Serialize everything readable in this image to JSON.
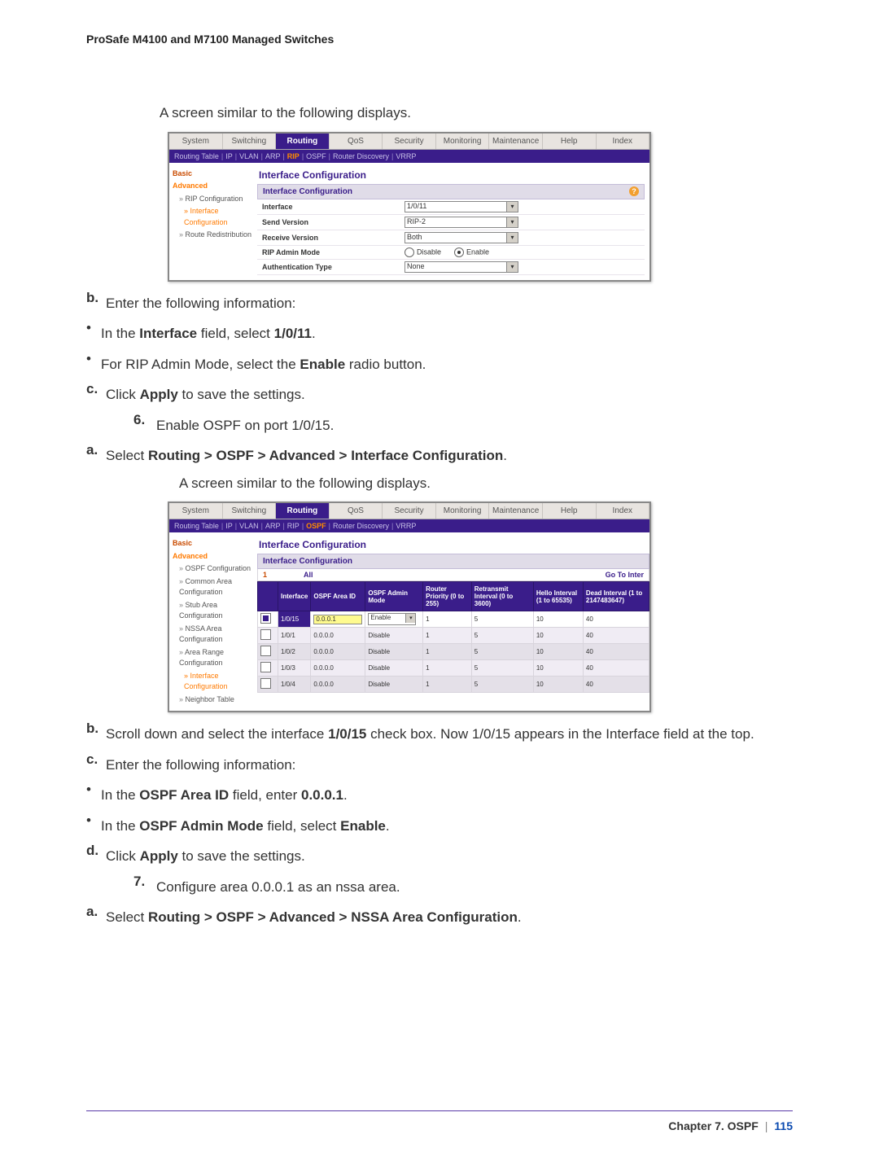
{
  "doc": {
    "header": "ProSafe M4100 and M7100 Managed Switches",
    "footer_chapter": "Chapter 7.  OSPF",
    "footer_page": "115"
  },
  "text": {
    "screen_similar": "A screen similar to the following displays.",
    "b_enter_info": "Enter the following information:",
    "bul_interface_pre": "In the ",
    "bul_interface_bold": "Interface",
    "bul_interface_mid": " field, select ",
    "bul_interface_val": "1/0/11",
    "bul_interface_post": ".",
    "bul_rip_pre": "For RIP Admin Mode, select the ",
    "bul_rip_bold": "Enable",
    "bul_rip_post": " radio button.",
    "c_click_pre": "Click ",
    "c_click_bold": "Apply",
    "c_click_post": " to save the settings.",
    "step6": "Enable OSPF on port 1/0/15.",
    "a6_pre": "Select ",
    "a6_bold": "Routing > OSPF > Advanced > Interface Configuration",
    "a6_post": ".",
    "b6_pre": "Scroll down and select the interface ",
    "b6_bold": "1/0/15",
    "b6_post": " check box. Now 1/0/15 appears in the Interface field at the top.",
    "c6_enter": "Enter the following information:",
    "bul_ospfarea_pre": "In the ",
    "bul_ospfarea_bold": "OSPF Area ID",
    "bul_ospfarea_mid": " field, enter ",
    "bul_ospfarea_val": "0.0.0.1",
    "bul_ospfarea_post": ".",
    "bul_adminmode_pre": "In the ",
    "bul_adminmode_bold": "OSPF Admin Mode",
    "bul_adminmode_mid": " field, select ",
    "bul_adminmode_val": "Enable",
    "bul_adminmode_post": ".",
    "d6_pre": "Click ",
    "d6_bold": "Apply",
    "d6_post": " to save the settings.",
    "step7": "Configure area 0.0.0.1 as an nssa area.",
    "a7_pre": "Select ",
    "a7_bold": "Routing > OSPF > Advanced > NSSA Area Configuration",
    "a7_post": "."
  },
  "labels": {
    "b": "b.",
    "c": "c.",
    "d": "d.",
    "a": "a.",
    "n6": "6.",
    "n7": "7.",
    "bullet": "•"
  },
  "shot1": {
    "tabs": [
      "System",
      "Switching",
      "Routing",
      "QoS",
      "Security",
      "Monitoring",
      "Maintenance",
      "Help",
      "Index"
    ],
    "active_tab": "Routing",
    "subtabs": [
      "Routing Table",
      "IP",
      "VLAN",
      "ARP",
      "RIP",
      "OSPF",
      "Router Discovery",
      "VRRP"
    ],
    "active_subtab": "RIP",
    "sidebar": {
      "basic": "Basic",
      "advanced": "Advanced",
      "items": [
        "RIP Configuration",
        "Interface Configuration",
        "Route Redistribution"
      ],
      "active": "Interface Configuration"
    },
    "title": "Interface Configuration",
    "subtitle": "Interface Configuration",
    "rows": {
      "interface": "Interface",
      "interface_val": "1/0/11",
      "send_version": "Send Version",
      "send_version_val": "RIP-2",
      "recv_version": "Receive Version",
      "recv_version_val": "Both",
      "admin_mode": "RIP Admin Mode",
      "admin_disable": "Disable",
      "admin_enable": "Enable",
      "auth_type": "Authentication Type",
      "auth_type_val": "None"
    }
  },
  "shot2": {
    "tabs": [
      "System",
      "Switching",
      "Routing",
      "QoS",
      "Security",
      "Monitoring",
      "Maintenance",
      "Help",
      "Index"
    ],
    "active_tab": "Routing",
    "subtabs": [
      "Routing Table",
      "IP",
      "VLAN",
      "ARP",
      "RIP",
      "OSPF",
      "Router Discovery",
      "VRRP"
    ],
    "active_subtab": "OSPF",
    "sidebar": {
      "basic": "Basic",
      "advanced": "Advanced",
      "items": [
        "OSPF Configuration",
        "Common Area Configuration",
        "Stub Area Configuration",
        "NSSA Area Configuration",
        "Area Range Configuration",
        "Interface Configuration",
        "Neighbor Table"
      ],
      "active": "Interface Configuration"
    },
    "title": "Interface Configuration",
    "subtitle": "Interface Configuration",
    "filter_one": "1",
    "filter_all": "All",
    "filter_goto": "Go To Inter",
    "columns": [
      "",
      "Interface",
      "OSPF Area ID",
      "OSPF Admin Mode",
      "Router Priority (0 to 255)",
      "Retransmit Interval (0 to 3600)",
      "Hello Interval (1 to 65535)",
      "Dead Interval (1 to 2147483647)"
    ],
    "editrow": {
      "iface": "1/0/15",
      "area": "0.0.0.1",
      "mode": "Enable",
      "prio": "1",
      "retr": "5",
      "hello": "10",
      "dead": "40"
    },
    "rows": [
      {
        "iface": "1/0/1",
        "area": "0.0.0.0",
        "mode": "Disable",
        "prio": "1",
        "retr": "5",
        "hello": "10",
        "dead": "40"
      },
      {
        "iface": "1/0/2",
        "area": "0.0.0.0",
        "mode": "Disable",
        "prio": "1",
        "retr": "5",
        "hello": "10",
        "dead": "40"
      },
      {
        "iface": "1/0/3",
        "area": "0.0.0.0",
        "mode": "Disable",
        "prio": "1",
        "retr": "5",
        "hello": "10",
        "dead": "40"
      },
      {
        "iface": "1/0/4",
        "area": "0.0.0.0",
        "mode": "Disable",
        "prio": "1",
        "retr": "5",
        "hello": "10",
        "dead": "40"
      }
    ]
  }
}
